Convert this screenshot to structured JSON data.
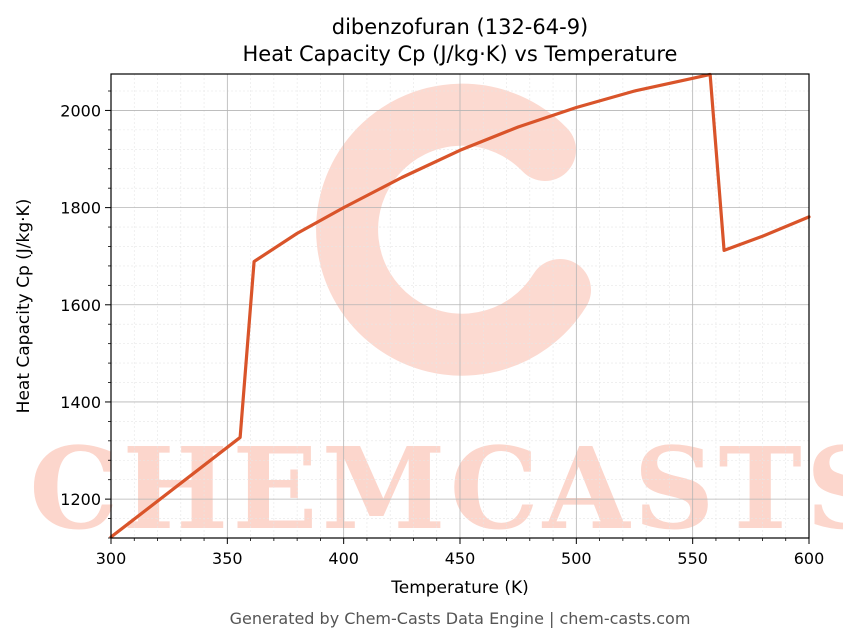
{
  "chart_data": {
    "type": "line",
    "title": "dibenzofuran (132-64-9)",
    "subtitle": "Heat Capacity Cp (J/kg·K) vs Temperature",
    "xlabel": "Temperature (K)",
    "ylabel": "Heat Capacity Cp (J/kg·K)",
    "xlim": [
      300,
      600
    ],
    "ylim": [
      1120,
      2075
    ],
    "x_ticks": [
      300,
      350,
      400,
      450,
      500,
      550,
      600
    ],
    "y_ticks": [
      1200,
      1400,
      1600,
      1800,
      2000
    ],
    "grid": true,
    "series": [
      {
        "color": "#d9542a",
        "x": [
          300,
          355.5,
          361.5,
          380,
          400,
          425,
          450,
          475,
          500,
          525,
          550,
          557.5,
          563.5,
          580,
          600
        ],
        "y": [
          1122,
          1327,
          1689,
          1747,
          1800,
          1862,
          1918,
          1966,
          2006,
          2040,
          2066,
          2074,
          1712,
          1741,
          1781
        ]
      }
    ]
  },
  "watermark": {
    "text": "CHEMCASTS",
    "color": "#fcd6cc"
  },
  "footer": "Generated by Chem-Casts Data Engine | chem-casts.com"
}
